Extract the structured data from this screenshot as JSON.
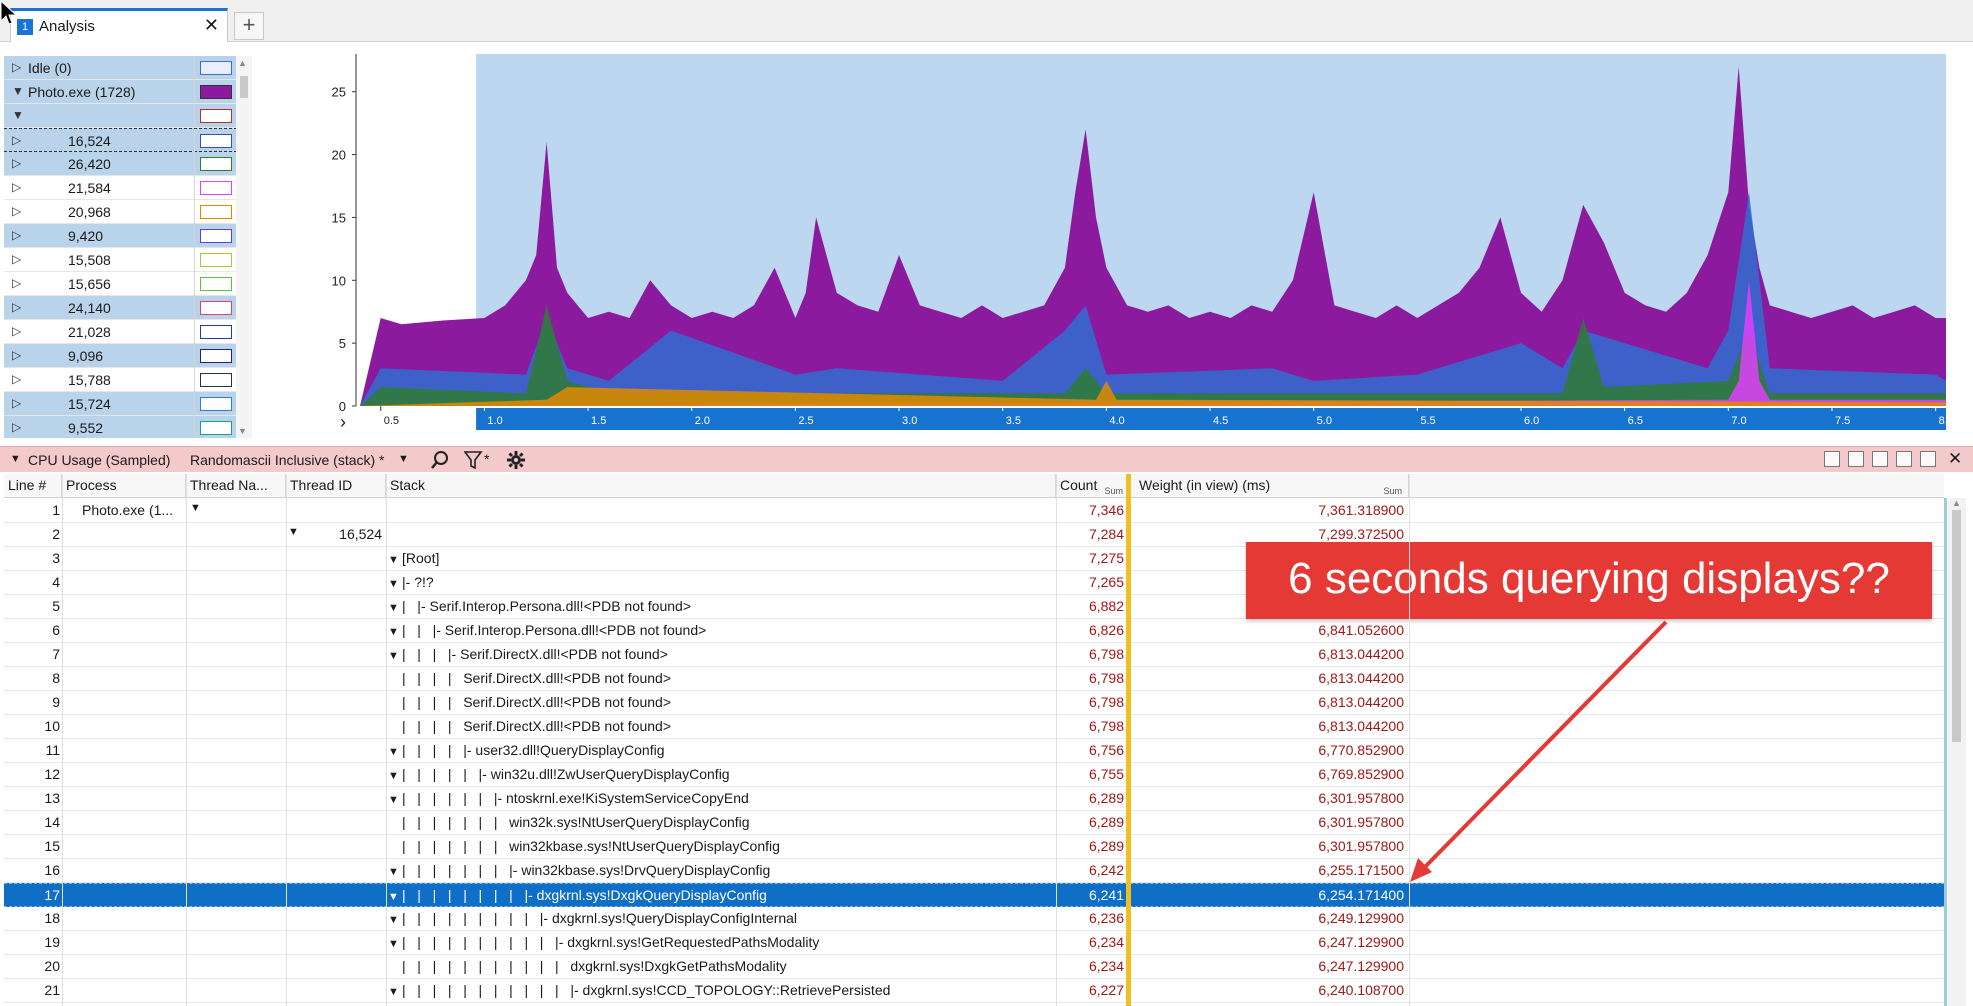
{
  "window": {
    "tab": {
      "number": "1",
      "label": "Analysis",
      "close": "✕"
    },
    "add_tab": "+"
  },
  "legend": {
    "rows": [
      {
        "label": "Idle (0)",
        "kind": "group",
        "expanded": false,
        "color": "#3b6fd6",
        "fill": "#e8eefc"
      },
      {
        "label": "Photo.exe (1728)",
        "kind": "group",
        "expanded": true,
        "color": "#333333",
        "fill": "#8b1a9e"
      },
      {
        "label": "",
        "kind": "group",
        "expanded": true,
        "color": "#b03030",
        "fill": "#ffffff"
      },
      {
        "label": "16,524",
        "kind": "thread",
        "color": "#3050c0",
        "fill": "#ffffff"
      },
      {
        "label": "26,420",
        "kind": "thread",
        "color": "#2e7d32",
        "fill": "#ffffff"
      },
      {
        "label": "21,584",
        "kind": "thread",
        "color": "#e040fb",
        "fill": "#ffffff"
      },
      {
        "label": "20,968",
        "kind": "thread",
        "color": "#e08a00",
        "fill": "#ffffff"
      },
      {
        "label": "9,420",
        "kind": "thread",
        "color": "#5b3fd6",
        "fill": "#ffffff"
      },
      {
        "label": "15,508",
        "kind": "thread",
        "color": "#b0c830",
        "fill": "#ffffff"
      },
      {
        "label": "15,656",
        "kind": "thread",
        "color": "#60c040",
        "fill": "#ffffff"
      },
      {
        "label": "24,140",
        "kind": "thread",
        "color": "#e0406a",
        "fill": "#ffffff"
      },
      {
        "label": "21,028",
        "kind": "thread",
        "color": "#1e3aa8",
        "fill": "#ffffff"
      },
      {
        "label": "9,096",
        "kind": "thread",
        "color": "#1a237e",
        "fill": "#ffffff"
      },
      {
        "label": "15,788",
        "kind": "thread",
        "color": "#263238",
        "fill": "#ffffff"
      },
      {
        "label": "15,724",
        "kind": "thread",
        "color": "#2f7fd0",
        "fill": "#ffffff"
      },
      {
        "label": "9,552",
        "kind": "thread",
        "color": "#1aa08a",
        "fill": "#ffffff"
      }
    ]
  },
  "chart_data": {
    "type": "area",
    "xlabel": "",
    "ylabel": "",
    "ylim": [
      0,
      28
    ],
    "xlim": [
      0.4,
      8.05
    ],
    "yticks": [
      "0",
      "5",
      "10",
      "15",
      "20",
      "25"
    ],
    "xticks": [
      "0.5",
      "1.0",
      "1.5",
      "2.0",
      "2.5",
      "3.0",
      "3.5",
      "4.0",
      "4.5",
      "5.0",
      "5.5",
      "6.0",
      "6.5",
      "7.0",
      "7.5",
      "8.0"
    ],
    "selection_range": [
      0.96,
      8.05
    ],
    "series": [
      {
        "name": "Photo.exe (1728)",
        "color": "#8b1a9e",
        "x": [
          0.4,
          0.5,
          0.6,
          0.8,
          1.0,
          1.1,
          1.2,
          1.25,
          1.3,
          1.35,
          1.4,
          1.5,
          1.6,
          1.7,
          1.8,
          1.9,
          2.0,
          2.1,
          2.2,
          2.3,
          2.4,
          2.5,
          2.55,
          2.6,
          2.7,
          2.8,
          2.9,
          3.0,
          3.1,
          3.2,
          3.3,
          3.4,
          3.5,
          3.6,
          3.7,
          3.8,
          3.85,
          3.9,
          3.95,
          4.0,
          4.1,
          4.2,
          4.3,
          4.4,
          4.5,
          4.6,
          4.7,
          4.8,
          4.9,
          5.0,
          5.1,
          5.2,
          5.3,
          5.4,
          5.5,
          5.6,
          5.7,
          5.8,
          5.9,
          6.0,
          6.1,
          6.2,
          6.3,
          6.4,
          6.5,
          6.6,
          6.7,
          6.8,
          6.9,
          7.0,
          7.05,
          7.1,
          7.15,
          7.2,
          7.3,
          7.4,
          7.5,
          7.6,
          7.7,
          7.8,
          7.9,
          8.0,
          8.05
        ],
        "values": [
          0,
          7,
          6.5,
          6.8,
          7,
          8,
          10,
          12,
          21,
          11,
          9,
          7,
          7.5,
          7,
          10,
          8,
          7,
          7.5,
          7,
          8,
          11,
          7,
          9,
          15,
          9,
          8,
          7.5,
          12,
          8,
          7.5,
          7,
          8,
          7,
          7.5,
          8,
          11,
          17,
          22,
          15,
          11,
          8,
          7.5,
          8,
          7,
          7.5,
          7,
          8,
          7.5,
          10,
          17,
          8,
          7.5,
          7,
          8,
          7,
          8,
          9,
          11,
          15,
          9,
          7.5,
          10,
          16,
          13,
          9,
          8,
          7.5,
          9,
          12,
          17,
          27,
          16,
          11,
          8,
          7.5,
          7,
          7.5,
          8,
          7,
          7.5,
          8,
          7,
          7
        ]
      },
      {
        "name": "16,524",
        "color": "#2f6fd0",
        "x": [
          0.4,
          0.5,
          1.2,
          1.3,
          1.4,
          1.6,
          1.9,
          2.5,
          2.7,
          3.5,
          3.8,
          3.9,
          4.0,
          4.8,
          5.0,
          5.5,
          6.0,
          6.2,
          6.3,
          6.9,
          7.0,
          7.1,
          7.2,
          8.0,
          8.05
        ],
        "values": [
          0,
          3,
          2.5,
          7,
          3,
          2,
          6,
          2.5,
          3,
          2,
          6,
          8,
          2.5,
          3,
          2,
          2.5,
          5,
          3,
          6,
          3,
          6,
          17,
          3,
          2.5,
          2
        ]
      },
      {
        "name": "26,420",
        "color": "#2e7d32",
        "x": [
          0.4,
          0.5,
          1.2,
          1.3,
          1.4,
          1.6,
          3.8,
          3.9,
          4.0,
          6.2,
          6.3,
          6.4,
          7.0,
          7.1,
          7.2,
          8.05
        ],
        "values": [
          0,
          1.5,
          1,
          8,
          2,
          1,
          1,
          3,
          1,
          1,
          7,
          1.5,
          2,
          6,
          1,
          1
        ]
      },
      {
        "name": "21,584",
        "color": "#e040fb",
        "x": [
          0.4,
          7.0,
          7.05,
          7.1,
          7.15,
          7.2,
          8.05
        ],
        "values": [
          0,
          0.5,
          2,
          10,
          2,
          0.5,
          0.5
        ]
      },
      {
        "name": "20,968",
        "color": "#e08a00",
        "x": [
          0.4,
          1.3,
          1.4,
          3.95,
          4.0,
          4.05,
          8.05
        ],
        "values": [
          0,
          0.5,
          1.5,
          0.5,
          2,
          0.5,
          0.3
        ]
      }
    ]
  },
  "pane": {
    "title": "CPU Usage (Sampled)",
    "preset": "Randomascii Inclusive (stack) *",
    "icons": [
      "search-icon",
      "filter-icon",
      "settings-icon"
    ],
    "filter_label": "*"
  },
  "table": {
    "columns": {
      "line": "Line #",
      "process": "Process",
      "thread_name": "Thread Na...",
      "thread_id": "Thread ID",
      "stack": "Stack",
      "count": "Count",
      "weight": "Weight (in view) (ms)",
      "sum": "Sum"
    },
    "rows": [
      {
        "line": "1",
        "process": "Photo.exe (1...",
        "tid": "",
        "stack": "",
        "count": "7,346",
        "weight": "7,361.318900"
      },
      {
        "line": "2",
        "process": "",
        "tid": "16,524",
        "stack": "",
        "count": "7,284",
        "weight": "7,299.372500"
      },
      {
        "line": "3",
        "process": "",
        "tid": "",
        "stack": "[Root]",
        "count": "7,275",
        "weight": ""
      },
      {
        "line": "4",
        "process": "",
        "tid": "",
        "stack": "|- ?!?",
        "count": "7,265",
        "weight": ""
      },
      {
        "line": "5",
        "process": "",
        "tid": "",
        "stack": "|   |- Serif.Interop.Persona.dll!<PDB not found>",
        "count": "6,882",
        "weight": ""
      },
      {
        "line": "6",
        "process": "",
        "tid": "",
        "stack": "|   |   |- Serif.Interop.Persona.dll!<PDB not found>",
        "count": "6,826",
        "weight": "6,841.052600"
      },
      {
        "line": "7",
        "process": "",
        "tid": "",
        "stack": "|   |   |   |- Serif.DirectX.dll!<PDB not found>",
        "count": "6,798",
        "weight": "6,813.044200"
      },
      {
        "line": "8",
        "process": "",
        "tid": "",
        "stack": "|   |   |   |   Serif.DirectX.dll!<PDB not found>",
        "count": "6,798",
        "weight": "6,813.044200"
      },
      {
        "line": "9",
        "process": "",
        "tid": "",
        "stack": "|   |   |   |   Serif.DirectX.dll!<PDB not found>",
        "count": "6,798",
        "weight": "6,813.044200"
      },
      {
        "line": "10",
        "process": "",
        "tid": "",
        "stack": "|   |   |   |   Serif.DirectX.dll!<PDB not found>",
        "count": "6,798",
        "weight": "6,813.044200"
      },
      {
        "line": "11",
        "process": "",
        "tid": "",
        "stack": "|   |   |   |   |- user32.dll!QueryDisplayConfig",
        "count": "6,756",
        "weight": "6,770.852900"
      },
      {
        "line": "12",
        "process": "",
        "tid": "",
        "stack": "|   |   |   |   |   |- win32u.dll!ZwUserQueryDisplayConfig",
        "count": "6,755",
        "weight": "6,769.852900"
      },
      {
        "line": "13",
        "process": "",
        "tid": "",
        "stack": "|   |   |   |   |   |   |- ntoskrnl.exe!KiSystemServiceCopyEnd",
        "count": "6,289",
        "weight": "6,301.957800"
      },
      {
        "line": "14",
        "process": "",
        "tid": "",
        "stack": "|   |   |   |   |   |   |   win32k.sys!NtUserQueryDisplayConfig",
        "count": "6,289",
        "weight": "6,301.957800"
      },
      {
        "line": "15",
        "process": "",
        "tid": "",
        "stack": "|   |   |   |   |   |   |   win32kbase.sys!NtUserQueryDisplayConfig",
        "count": "6,289",
        "weight": "6,301.957800"
      },
      {
        "line": "16",
        "process": "",
        "tid": "",
        "stack": "|   |   |   |   |   |   |   |- win32kbase.sys!DrvQueryDisplayConfig",
        "count": "6,242",
        "weight": "6,255.171500"
      },
      {
        "line": "17",
        "process": "",
        "tid": "",
        "stack": "|   |   |   |   |   |   |   |   |- dxgkrnl.sys!DxgkQueryDisplayConfig",
        "count": "6,241",
        "weight": "6,254.171400",
        "selected": true
      },
      {
        "line": "18",
        "process": "",
        "tid": "",
        "stack": "|   |   |   |   |   |   |   |   |   |- dxgkrnl.sys!QueryDisplayConfigInternal",
        "count": "6,236",
        "weight": "6,249.129900"
      },
      {
        "line": "19",
        "process": "",
        "tid": "",
        "stack": "|   |   |   |   |   |   |   |   |   |   |- dxgkrnl.sys!GetRequestedPathsModality",
        "count": "6,234",
        "weight": "6,247.129900"
      },
      {
        "line": "20",
        "process": "",
        "tid": "",
        "stack": "|   |   |   |   |   |   |   |   |   |   |   dxgkrnl.sys!DxgkGetPathsModality",
        "count": "6,234",
        "weight": "6,247.129900"
      },
      {
        "line": "21",
        "process": "",
        "tid": "",
        "stack": "|   |   |   |   |   |   |   |   |   |   |   |- dxgkrnl.sys!CCD_TOPOLOGY::RetrievePersisted",
        "count": "6,227",
        "weight": "6,240.108700"
      }
    ]
  },
  "annotation": {
    "text": "6 seconds querying displays??",
    "color": "#e53935"
  }
}
